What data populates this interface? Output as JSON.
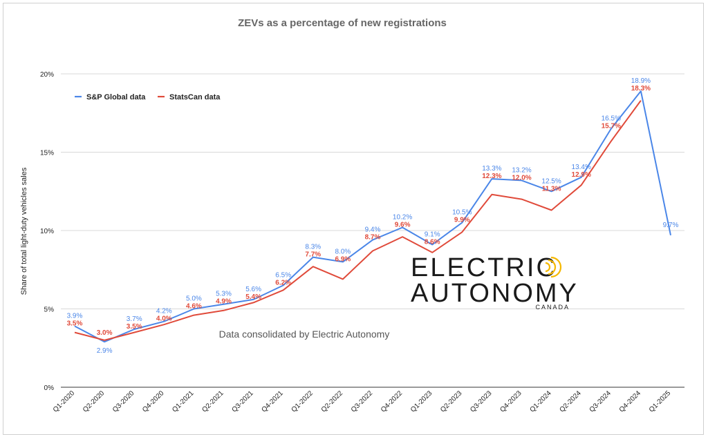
{
  "chart_data": {
    "type": "line",
    "title": "ZEVs as a percentage of new registrations",
    "ylabel": "Share of total light-duty vehicles sales",
    "xlabel": "",
    "ylim": [
      0,
      20
    ],
    "yticks": [
      0,
      5,
      10,
      15,
      20
    ],
    "ytick_labels": [
      "0%",
      "5%",
      "10%",
      "15%",
      "20%"
    ],
    "grid": true,
    "legend_position": "top-left",
    "categories": [
      "Q1-2020",
      "Q2-2020",
      "Q3-2020",
      "Q4-2020",
      "Q1-2021",
      "Q2-2021",
      "Q3-2021",
      "Q4-2021",
      "Q1-2022",
      "Q2-2022",
      "Q3-2022",
      "Q4-2022",
      "Q1-2023",
      "Q2-2023",
      "Q3-2023",
      "Q4-2023",
      "Q1-2024",
      "Q2-2024",
      "Q3-2024",
      "Q4-2024",
      "Q1-2025"
    ],
    "series": [
      {
        "name": "S&P Global data",
        "color": "#4a86e8",
        "values": [
          3.9,
          2.9,
          3.7,
          4.2,
          5.0,
          5.3,
          5.6,
          6.5,
          8.3,
          8.0,
          9.4,
          10.2,
          9.1,
          10.5,
          13.3,
          13.2,
          12.5,
          13.4,
          16.5,
          18.9,
          9.7
        ],
        "labels": [
          "3.9%",
          "2.9%",
          "3.7%",
          "4.2%",
          "5.0%",
          "5.3%",
          "5.6%",
          "6.5%",
          "8.3%",
          "8.0%",
          "9.4%",
          "10.2%",
          "9.1%",
          "10.5%",
          "13.3%",
          "13.2%",
          "12.5%",
          "13.4%",
          "16.5%",
          "18.9%",
          "9.7%"
        ]
      },
      {
        "name": "StatsCan data",
        "color": "#e04a3a",
        "values": [
          3.5,
          3.0,
          3.5,
          4.0,
          4.6,
          4.9,
          5.4,
          6.2,
          7.7,
          6.9,
          8.7,
          9.6,
          8.6,
          9.9,
          12.3,
          12.0,
          11.3,
          12.9,
          15.7,
          18.3,
          null
        ],
        "labels": [
          "3.5%",
          "3.0%",
          "3.5%",
          "4.0%",
          "4.6%",
          "4.9%",
          "5.4%",
          "6.2%",
          "7.7%",
          "6.9%",
          "8.7%",
          "9.6%",
          "8.6%",
          "9.9%",
          "12.3%",
          "12.0%",
          "11.3%",
          "12.9%",
          "15.7%",
          "18.3%",
          ""
        ]
      }
    ],
    "annotation": "Data consolidated by Electric Autonomy"
  },
  "logo": {
    "line1": "ELECTRIC",
    "line2": "AUTONOMY",
    "line3": "CANADA",
    "icon": "broadcast-signal-icon",
    "accent_color": "#f5b800"
  }
}
